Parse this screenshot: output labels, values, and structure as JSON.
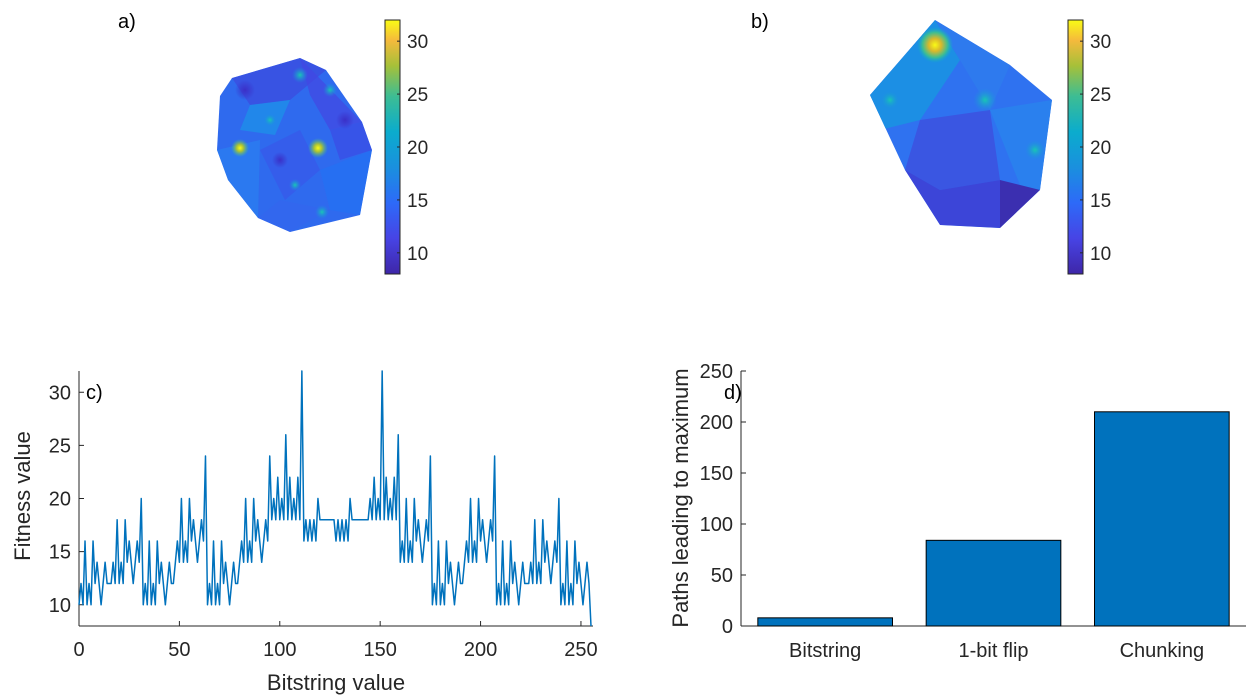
{
  "panels": {
    "a": {
      "label": "a)"
    },
    "b": {
      "label": "b)"
    },
    "c": {
      "label": "c)"
    },
    "d": {
      "label": "d)"
    }
  },
  "colorbars": {
    "a": {
      "ticks": [
        "10",
        "15",
        "20",
        "25",
        "30"
      ],
      "range": [
        8,
        32
      ]
    },
    "b": {
      "ticks": [
        "10",
        "15",
        "20",
        "25",
        "30"
      ],
      "range": [
        8,
        32
      ]
    }
  },
  "chart_data": [
    {
      "panel": "c",
      "type": "line",
      "xlabel": "Bitstring value",
      "ylabel": "Fitness value",
      "xlim": [
        0,
        256
      ],
      "ylim": [
        8,
        32
      ],
      "xticks": [
        "0",
        "50",
        "100",
        "150",
        "200",
        "250"
      ],
      "yticks": [
        "10",
        "15",
        "20",
        "25",
        "30"
      ],
      "color": "#0072BD",
      "x_start": 0,
      "x_end": 255,
      "y": [
        10,
        12,
        10,
        16,
        10,
        12,
        10,
        16,
        12,
        14,
        12,
        10,
        12,
        14,
        12,
        12,
        12,
        14,
        12,
        18,
        12,
        14,
        12,
        18,
        14,
        16,
        14,
        12,
        14,
        16,
        14,
        20,
        10,
        12,
        10,
        16,
        10,
        12,
        10,
        16,
        12,
        14,
        12,
        10,
        12,
        14,
        12,
        12,
        14,
        16,
        14,
        20,
        14,
        16,
        14,
        20,
        16,
        18,
        16,
        14,
        16,
        18,
        16,
        24,
        10,
        12,
        10,
        16,
        10,
        12,
        10,
        16,
        12,
        14,
        12,
        10,
        12,
        14,
        12,
        12,
        14,
        16,
        14,
        20,
        14,
        16,
        14,
        20,
        16,
        18,
        16,
        14,
        16,
        18,
        16,
        24,
        18,
        20,
        18,
        22,
        18,
        20,
        18,
        26,
        18,
        22,
        18,
        20,
        18,
        22,
        18,
        32,
        16,
        18,
        16,
        18,
        16,
        18,
        16,
        20,
        18,
        18,
        18,
        18,
        18,
        18,
        18,
        18,
        16,
        18,
        16,
        18,
        16,
        18,
        16,
        20,
        18,
        18,
        18,
        18,
        18,
        18,
        18,
        18,
        18,
        20,
        18,
        22,
        18,
        20,
        18,
        32,
        18,
        22,
        18,
        20,
        18,
        22,
        18,
        26,
        14,
        16,
        14,
        20,
        14,
        16,
        14,
        20,
        16,
        18,
        16,
        14,
        16,
        18,
        16,
        24,
        10,
        12,
        10,
        16,
        10,
        12,
        10,
        16,
        12,
        14,
        12,
        10,
        12,
        14,
        12,
        12,
        14,
        16,
        14,
        20,
        14,
        16,
        14,
        20,
        16,
        18,
        16,
        14,
        16,
        18,
        16,
        24,
        10,
        12,
        10,
        16,
        10,
        12,
        10,
        16,
        12,
        14,
        12,
        10,
        12,
        14,
        12,
        12,
        12,
        14,
        12,
        18,
        12,
        14,
        12,
        18,
        14,
        16,
        14,
        12,
        14,
        16,
        14,
        20,
        10,
        12,
        10,
        16,
        10,
        12,
        10,
        16,
        12,
        14,
        12,
        10,
        12,
        14,
        12,
        8
      ]
    },
    {
      "panel": "d",
      "type": "bar",
      "xlabel": "",
      "ylabel": "Paths leading to maximum",
      "categories": [
        "Bitstring",
        "1-bit flip",
        "Chunking"
      ],
      "values": [
        8,
        84,
        210
      ],
      "ylim": [
        0,
        250
      ],
      "yticks": [
        "0",
        "50",
        "100",
        "150",
        "200",
        "250"
      ],
      "color": "#0072BD"
    }
  ]
}
